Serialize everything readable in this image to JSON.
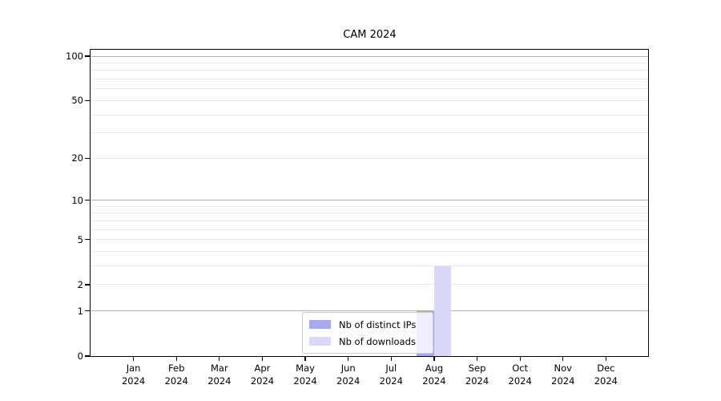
{
  "chart_data": {
    "type": "bar",
    "title": "CAM 2024",
    "x_axis": {
      "months": [
        "Jan",
        "Feb",
        "Mar",
        "Apr",
        "May",
        "Jun",
        "Jul",
        "Aug",
        "Sep",
        "Oct",
        "Nov",
        "Dec"
      ],
      "year": "2024"
    },
    "y_axis": {
      "scale": "log1p",
      "ticks": [
        0,
        1,
        2,
        5,
        10,
        20,
        50,
        100
      ],
      "ylim": [
        0,
        110.5
      ],
      "major_gridlines": [
        1,
        10,
        100
      ],
      "minor_gridlines": [
        2,
        3,
        4,
        5,
        6,
        7,
        8,
        9,
        20,
        30,
        40,
        50,
        60,
        70,
        80,
        90
      ]
    },
    "series": [
      {
        "name": "Nb of distinct IPs",
        "color": "#a8a8ee",
        "values": [
          0,
          0,
          0,
          0,
          0,
          0,
          0,
          1,
          0,
          0,
          0,
          0
        ]
      },
      {
        "name": "Nb of downloads",
        "color": "#d9d9f7",
        "values": [
          0,
          0,
          0,
          0,
          0,
          0,
          0,
          3,
          0,
          0,
          0,
          0
        ]
      }
    ],
    "legend": {
      "position": "lower-center",
      "entries": [
        "Nb of distinct IPs",
        "Nb of downloads"
      ]
    },
    "colors": {
      "major_grid": "#b0b0b0",
      "minor_grid": "#e9e9e9",
      "spine": "#000000",
      "text": "#000000",
      "background": "#ffffff"
    },
    "grid": "on",
    "xlabel": "",
    "ylabel": ""
  }
}
